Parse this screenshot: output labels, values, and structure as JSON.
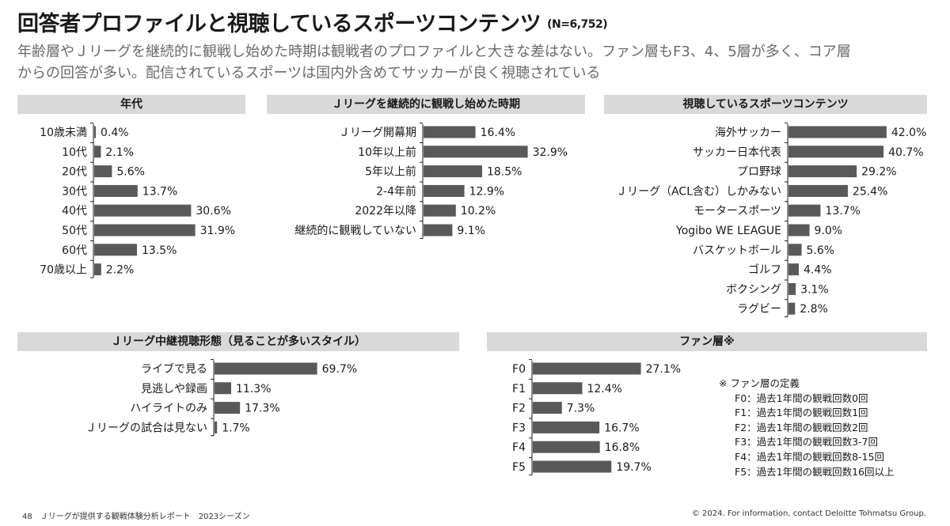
{
  "page": {
    "title": "回答者プロファイルと視聴しているスポーツコンテンツ",
    "sample": "(N=6,752)",
    "subtitle_line1": "年齢層やＪリーグを継続的に観戦し始めた時期は観戦者のプロファイルと大きな差はない。ファン層もF3、4、5層が多く、コア層",
    "subtitle_line2": "からの回答が多い。配信されているスポーツは国内外含めてサッカーが良く視聴されている",
    "footer_left": "48　Ｊリーグが提供する観戦体験分析レポート　2023シーズン",
    "footer_right": "© 2024. For information, contact Deloitte Tohmatsu Group."
  },
  "colors": {
    "bar": "#595959",
    "header_bg": "#d9d9d9",
    "axis": "#1a1a1a"
  },
  "chart_data": [
    {
      "id": "age",
      "type": "bar",
      "orientation": "horizontal",
      "title": "年代",
      "unit": "%",
      "categories": [
        "10歳未満",
        "10代",
        "20代",
        "30代",
        "40代",
        "50代",
        "60代",
        "70歳以上"
      ],
      "values": [
        0.4,
        2.1,
        5.6,
        13.7,
        30.6,
        31.9,
        13.5,
        2.2
      ],
      "labels": [
        "0.4%",
        "2.1%",
        "5.6%",
        "13.7%",
        "30.6%",
        "31.9%",
        "13.5%",
        "2.2%"
      ]
    },
    {
      "id": "start",
      "type": "bar",
      "orientation": "horizontal",
      "title": "Ｊリーグを継続的に観戦し始めた時期",
      "unit": "%",
      "categories": [
        "Ｊリーグ開幕期",
        "10年以上前",
        "5年以上前",
        "2-4年前",
        "2022年以降",
        "継続的に観戦していない"
      ],
      "values": [
        16.4,
        32.9,
        18.5,
        12.9,
        10.2,
        9.1
      ],
      "labels": [
        "16.4%",
        "32.9%",
        "18.5%",
        "12.9%",
        "10.2%",
        "9.1%"
      ]
    },
    {
      "id": "sports",
      "type": "bar",
      "orientation": "horizontal",
      "title": "視聴しているスポーツコンテンツ",
      "unit": "%",
      "categories": [
        "海外サッカー",
        "サッカー日本代表",
        "プロ野球",
        "Ｊリーグ（ACL含む）しかみない",
        "モータースポーツ",
        "Yogibo WE LEAGUE",
        "バスケットボール",
        "ゴルフ",
        "ボクシング",
        "ラグビー"
      ],
      "values": [
        42.0,
        40.7,
        29.2,
        25.4,
        13.7,
        9.0,
        5.6,
        4.4,
        3.1,
        2.8
      ],
      "labels": [
        "42.0%",
        "40.7%",
        "29.2%",
        "25.4%",
        "13.7%",
        "9.0%",
        "5.6%",
        "4.4%",
        "3.1%",
        "2.8%"
      ]
    },
    {
      "id": "style",
      "type": "bar",
      "orientation": "horizontal",
      "title": "Ｊリーグ中継視聴形態（見ることが多いスタイル）",
      "unit": "%",
      "categories": [
        "ライブで見る",
        "見逃しや録画",
        "ハイライトのみ",
        "Ｊリーグの試合は見ない"
      ],
      "values": [
        69.7,
        11.3,
        17.3,
        1.7
      ],
      "labels": [
        "69.7%",
        "11.3%",
        "17.3%",
        "1.7%"
      ]
    },
    {
      "id": "fan",
      "type": "bar",
      "orientation": "horizontal",
      "title": "ファン層※",
      "unit": "%",
      "categories": [
        "F0",
        "F1",
        "F2",
        "F3",
        "F4",
        "F5"
      ],
      "values": [
        27.1,
        12.4,
        7.3,
        16.7,
        16.8,
        19.7
      ],
      "labels": [
        "27.1%",
        "12.4%",
        "7.3%",
        "16.7%",
        "16.8%",
        "19.7%"
      ]
    }
  ],
  "fan_definitions": {
    "heading": "※ ファン層の定義",
    "items": [
      "F0：過去1年間の観戦回数0回",
      "F1：過去1年間の観戦回数1回",
      "F2：過去1年間の観戦回数2回",
      "F3：過去1年間の観戦回数3-7回",
      "F4：過去1年間の観戦回数8-15回",
      "F5：過去1年間の観戦回数16回以上"
    ]
  }
}
